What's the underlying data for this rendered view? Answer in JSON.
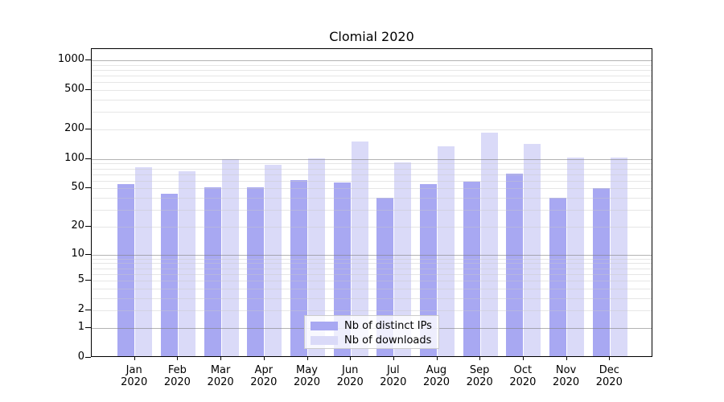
{
  "chart_data": {
    "type": "bar",
    "title": "Clomial 2020",
    "categories": [
      "Jan",
      "Feb",
      "Mar",
      "Apr",
      "May",
      "Jun",
      "Jul",
      "Aug",
      "Sep",
      "Oct",
      "Nov",
      "Dec"
    ],
    "category_year": "2020",
    "series": [
      {
        "name": "Nb of distinct IPs",
        "color": "#a8a8f2",
        "values": [
          55,
          44,
          51,
          51,
          61,
          58,
          40,
          55,
          59,
          71,
          40,
          50
        ]
      },
      {
        "name": "Nb of downloads",
        "color": "#dadaf8",
        "values": [
          82,
          75,
          99,
          87,
          101,
          152,
          92,
          135,
          185,
          142,
          103,
          104
        ]
      }
    ],
    "y_axis": {
      "scale": "log1p",
      "ylim": [
        0,
        1300
      ],
      "tick_values": [
        0,
        1,
        2,
        5,
        10,
        20,
        50,
        100,
        200,
        500,
        1000
      ],
      "tick_labels": [
        "0",
        "1",
        "2",
        "5",
        "10",
        "20",
        "50",
        "100",
        "200",
        "500",
        "1000"
      ],
      "major_gridlines": [
        1,
        10,
        100,
        1000
      ],
      "minor_gridlines": [
        2,
        3,
        4,
        5,
        6,
        7,
        8,
        9,
        20,
        30,
        40,
        50,
        60,
        70,
        80,
        90,
        200,
        300,
        400,
        500,
        600,
        700,
        800,
        900
      ]
    },
    "legend": {
      "position": "bottom-center",
      "entries": [
        "Nb of distinct IPs",
        "Nb of downloads"
      ]
    },
    "colors": {
      "major_grid": "rgba(128,128,128,0.6)",
      "minor_grid": "rgba(200,200,200,0.45)",
      "spine": "#000000",
      "background": "#ffffff"
    },
    "grid": "on",
    "xlabel": "",
    "ylabel": ""
  }
}
